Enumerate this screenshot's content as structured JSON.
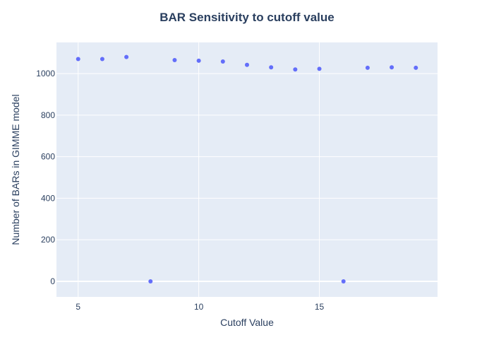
{
  "chart_data": {
    "type": "scatter",
    "title": "BAR Sensitivity to cutoff value",
    "xlabel": "Cutoff Value",
    "ylabel": "Number of BARs in GIMME model",
    "xlim": [
      4.1,
      19.9
    ],
    "ylim": [
      -75,
      1150
    ],
    "x_ticks": [
      5,
      10,
      15
    ],
    "y_ticks": [
      0,
      200,
      400,
      600,
      800,
      1000
    ],
    "x_tick_labels": [
      "5",
      "10",
      "15"
    ],
    "y_tick_labels": [
      "0",
      "200",
      "400",
      "600",
      "800",
      "1000"
    ],
    "grid": true,
    "legend": "none",
    "series": [
      {
        "x": [
          5,
          6,
          7,
          8,
          9,
          10,
          11,
          12,
          13,
          14,
          15,
          16,
          17,
          18,
          19
        ],
        "y": [
          1070,
          1070,
          1080,
          0,
          1065,
          1062,
          1058,
          1042,
          1030,
          1020,
          1023,
          0,
          1028,
          1030,
          1028
        ]
      }
    ],
    "colors": {
      "background": "#ffffff",
      "plot_background": "#e5ecf6",
      "grid": "#ffffff",
      "marker": "#636efa",
      "text": "#2a3f5f"
    }
  }
}
